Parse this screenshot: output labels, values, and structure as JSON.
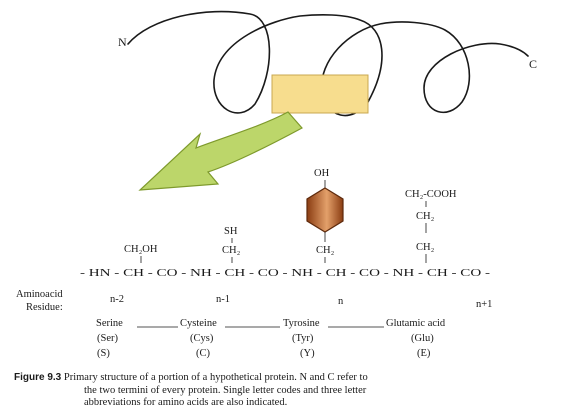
{
  "protein": {
    "n_terminus": "N",
    "c_terminus": "C"
  },
  "side_chains": {
    "serine": "CH₂OH",
    "cysteine_top": "SH",
    "cysteine_bottom": "CH₂",
    "tyrosine_top": "OH",
    "tyrosine_bottom": "CH₂",
    "glutamic_top": "CH₂-COOH",
    "glutamic_mid": "CH₂",
    "glutamic_bottom": "CH₂"
  },
  "backbone": "- HN - CH - CO - NH - CH - CO - NH - CH - CO - NH - CH - CO -",
  "residue_label": [
    "Aminoacid",
    "Residue:"
  ],
  "residues": [
    {
      "position": "n-2",
      "name": "Serine",
      "three": "(Ser)",
      "one": "(S)"
    },
    {
      "position": "n-1",
      "name": "Cysteine",
      "three": "(Cys)",
      "one": "(C)"
    },
    {
      "position": "n",
      "name": "Tyrosine",
      "three": "(Tyr)",
      "one": "(Y)"
    },
    {
      "position": "n+1",
      "name": "Glutamic acid",
      "three": "(Glu)",
      "one": "(E)"
    }
  ],
  "colors": {
    "highlight_box": "#f7dd8e",
    "highlight_border": "#c9a850",
    "arrow_fill": "#bcd66a",
    "arrow_stroke": "#7e9a2c",
    "ring_dark": "#8a3c12",
    "ring_light": "#e3a06a",
    "ring_stroke": "#5e2a0c"
  },
  "caption": {
    "label": "Figure 9.3",
    "lines": [
      "Primary structure of a portion of a hypothetical protein. N and C refer to",
      "the two termini of every protein. Single letter codes and three  letter",
      "abbreviations for amino acids are also indicated."
    ]
  }
}
